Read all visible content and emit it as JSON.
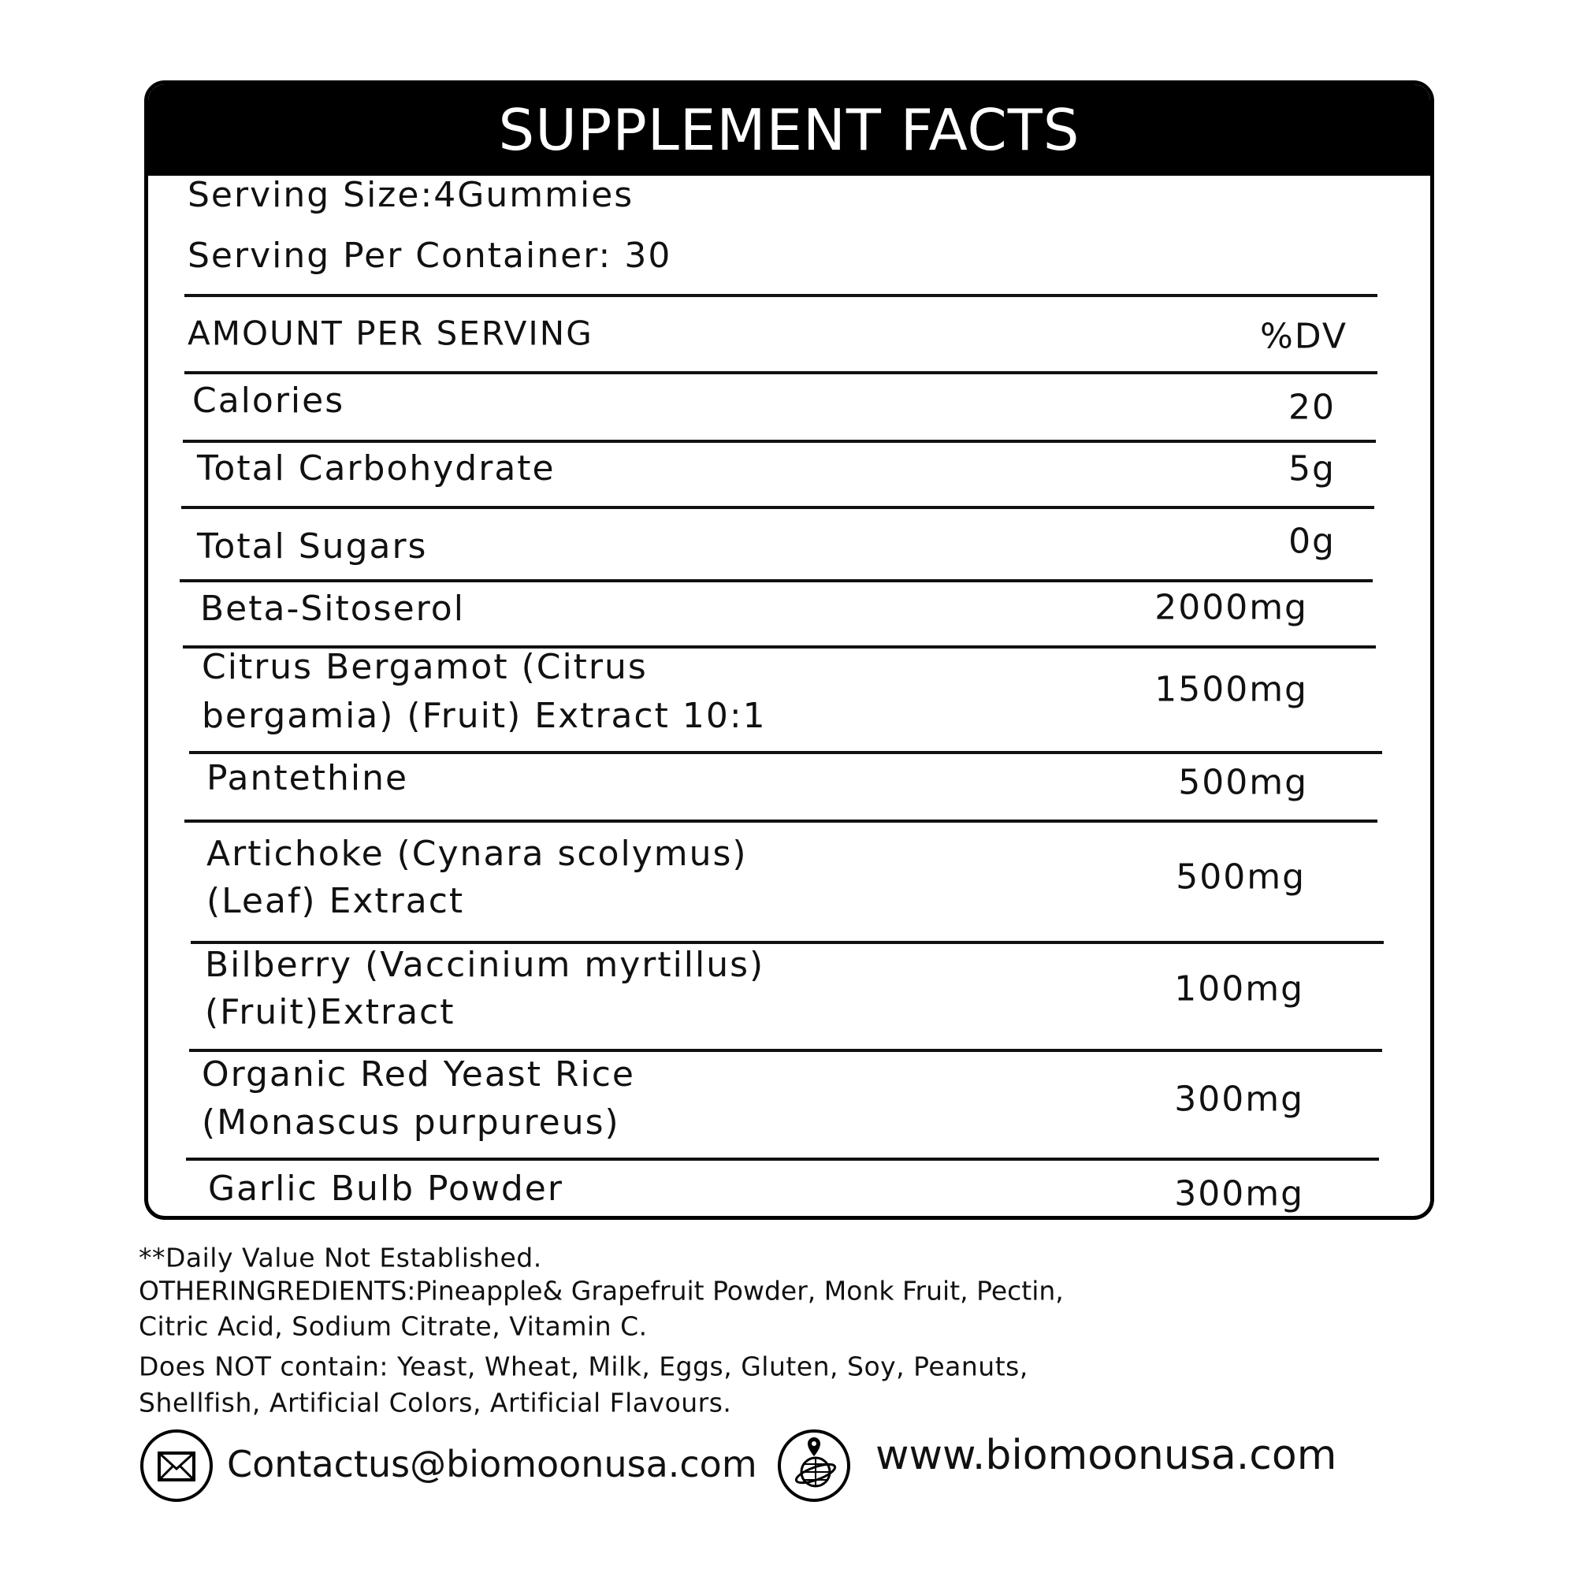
{
  "title": "SUPPLEMENT FACTS",
  "serving_size": "Serving Size:4Gummies",
  "servings_per_container": "Serving Per Container: 30",
  "header_row": {
    "label": "AMOUNT PER SERVING",
    "value": "%DV"
  },
  "rows": [
    {
      "label": "Calories",
      "value": "20"
    },
    {
      "label": "Total Carbohydrate",
      "value": "5g"
    },
    {
      "label": "Total Sugars",
      "value": "0g"
    },
    {
      "label": "Beta-Sitoserol",
      "value": "2000mg"
    },
    {
      "label": "Citrus Bergamot (Citrus",
      "label2": "bergamia) (Fruit) Extract 10:1",
      "value": "1500mg"
    },
    {
      "label": "Pantethine",
      "value": "500mg"
    },
    {
      "label": "Artichoke (Cynara scolymus)",
      "label2": "(Leaf) Extract",
      "value": "500mg"
    },
    {
      "label": "Bilberry (Vaccinium myrtillus)",
      "label2": "(Fruit)Extract",
      "value": "100mg"
    },
    {
      "label": "Organic Red Yeast Rice",
      "label2": "(Monascus purpureus)",
      "value": "300mg"
    },
    {
      "label": "Garlic Bulb Powder",
      "value": "300mg"
    }
  ],
  "footer": {
    "dv_note": "**Daily Value Not Established.",
    "other_1": "OTHERINGREDIENTS:Pineapple& Grapefruit Powder, Monk Fruit, Pectin,",
    "other_2": "Citric Acid, Sodium Citrate, Vitamin C.",
    "allergen_1": "Does NOT contain: Yeast, Wheat, Milk, Eggs, Gluten, Soy, Peanuts,",
    "allergen_2": "Shellfish, Artificial Colors, Artificial Flavours.",
    "email": "Contactus@biomoonusa.com",
    "website": "www.biomoonusa.com",
    "email_icon": "envelope-icon",
    "web_icon": "globe-location-icon"
  }
}
